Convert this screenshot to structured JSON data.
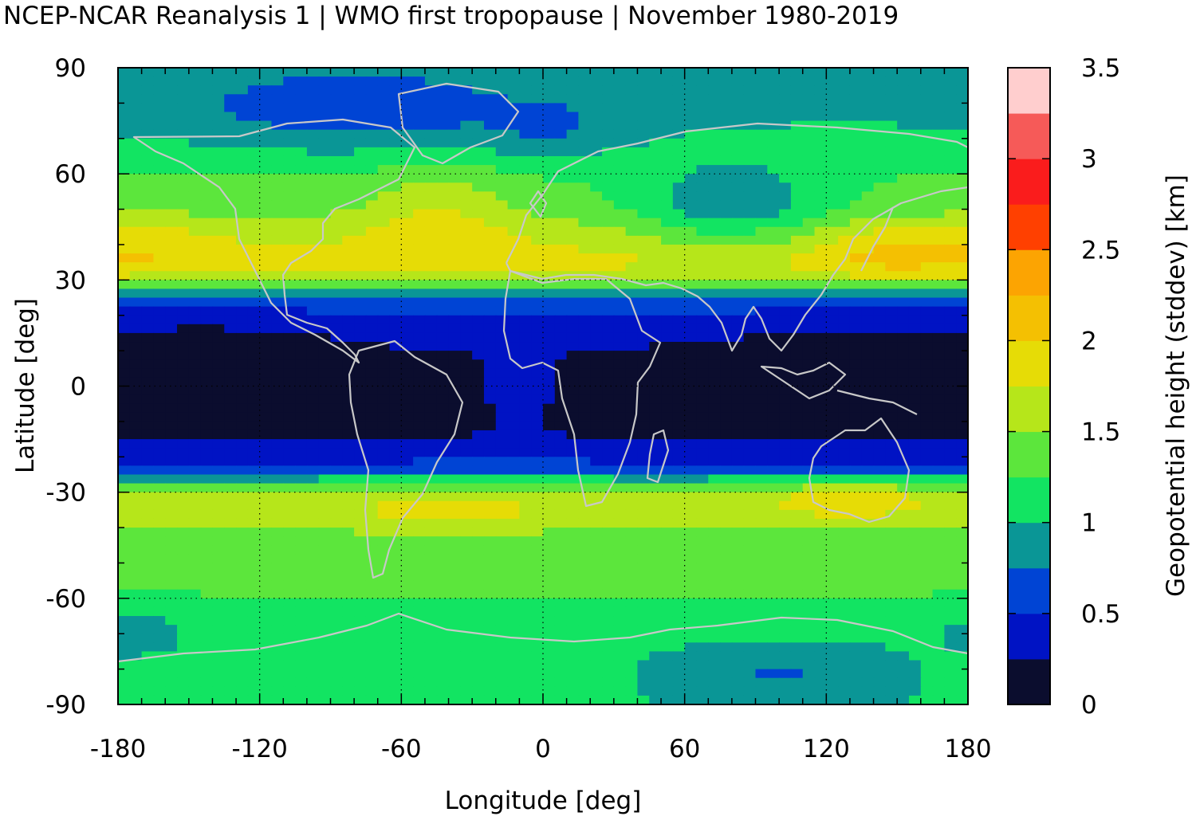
{
  "title": "NCEP-NCAR Reanalysis 1 | WMO first tropopause | November 1980-2019",
  "chart_data": {
    "type": "heatmap",
    "xlabel": "Longitude [deg]",
    "ylabel": "Latitude [deg]",
    "xlim": [
      -180,
      180
    ],
    "ylim": [
      -90,
      90
    ],
    "xticks": [
      "-180",
      "-120",
      "-60",
      "0",
      "60",
      "120",
      "180"
    ],
    "yticks": [
      "90",
      "60",
      "30",
      "0",
      "-30",
      "-60",
      "-90"
    ],
    "grid": true,
    "colorbar": {
      "label": "Geopotential height (stddev) [km]",
      "range": [
        0,
        3.5
      ],
      "ticks": [
        "0",
        "0.5",
        "1",
        "1.5",
        "2",
        "2.5",
        "3",
        "3.5"
      ],
      "colors": [
        "#0b0d2e",
        "#0013c4",
        "#0044d4",
        "#0a9696",
        "#12e462",
        "#5ce63c",
        "#b6e61a",
        "#e6dc06",
        "#f4c002",
        "#fca402",
        "#ff4000",
        "#fa1c1c",
        "#f65a58",
        "#ffcece"
      ]
    },
    "zonal_profile": {
      "lat": [
        -90,
        -80,
        -70,
        -60,
        -50,
        -40,
        -35,
        -30,
        -25,
        -20,
        -15,
        -10,
        -5,
        0,
        5,
        10,
        15,
        20,
        25,
        30,
        35,
        40,
        45,
        50,
        60,
        70,
        80,
        90
      ],
      "stddev_km": [
        1.05,
        1.2,
        1.15,
        1.25,
        1.3,
        1.5,
        1.7,
        1.6,
        0.8,
        0.4,
        0.25,
        0.2,
        0.2,
        0.2,
        0.2,
        0.25,
        0.3,
        0.45,
        0.75,
        1.6,
        1.85,
        1.75,
        1.6,
        1.4,
        1.25,
        1.05,
        0.95,
        0.95
      ]
    }
  }
}
